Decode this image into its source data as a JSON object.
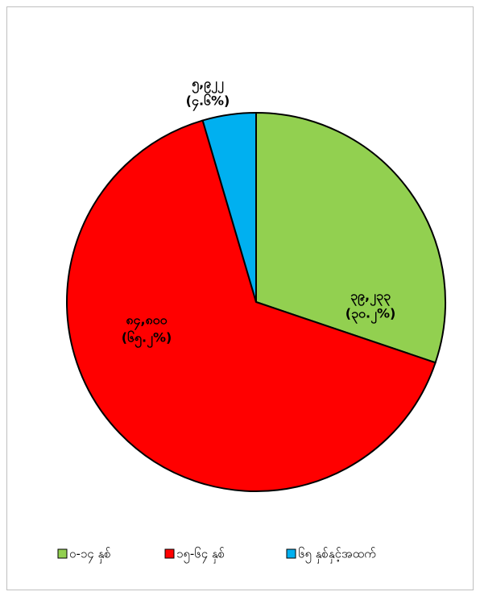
{
  "chart_data": {
    "type": "pie",
    "categories": [
      "၀-၁၄ နှစ်",
      "၁၅-၆၄ နှစ်",
      "၆၅ နှစ်နှင့်အထက်"
    ],
    "values": [
      39233,
      84800,
      5922
    ],
    "value_labels": [
      "၃၉,၂၃၃",
      "၈၄,၈၀၀",
      "၅,၉၂၂"
    ],
    "percent_labels": [
      "(၃၀.၂%)",
      "(၆၅.၂%)",
      "(၄.၆%)"
    ],
    "colors": [
      "#92d050",
      "#ff0000",
      "#00b0f0"
    ],
    "legend": "bottom"
  }
}
